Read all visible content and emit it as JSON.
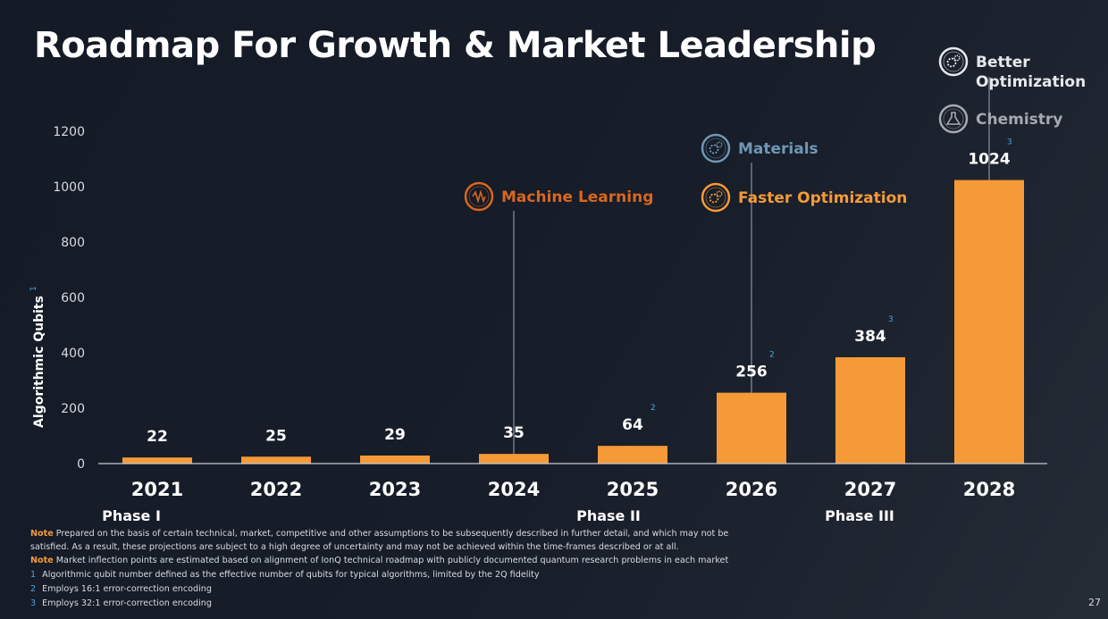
{
  "title": "Roadmap For Growth & Market Leadership",
  "chart_data": {
    "type": "bar",
    "categories": [
      "2021",
      "2022",
      "2023",
      "2024",
      "2025",
      "2026",
      "2027",
      "2028"
    ],
    "values": [
      22,
      25,
      29,
      35,
      64,
      256,
      384,
      1024
    ],
    "value_footnotes": [
      "",
      "",
      "",
      "",
      "2",
      "2",
      "3",
      "3"
    ],
    "ylabel": "Algorithmic Qubits",
    "ylabel_footnote": "1",
    "ylim": [
      0,
      1200
    ],
    "yticks": [
      0,
      200,
      400,
      600,
      800,
      1000,
      1200
    ],
    "grid": false,
    "phases": [
      {
        "label": "Phase I",
        "category": "2021"
      },
      {
        "label": "Phase II",
        "category": "2025"
      },
      {
        "label": "Phase III",
        "category": "2027"
      }
    ],
    "annotations": [
      {
        "category": "2024",
        "items": [
          {
            "text": "Machine Learning",
            "color": "#d9661f",
            "icon": "neural-chip-icon"
          }
        ]
      },
      {
        "category": "2026",
        "items": [
          {
            "text": "Materials",
            "color": "#6f97b5",
            "icon": "gears-icon"
          },
          {
            "text": "Faster Optimization",
            "color": "#f59a37",
            "icon": "gear-clock-icon"
          }
        ]
      },
      {
        "category": "2028",
        "items": [
          {
            "text": "Better Optimization",
            "color": "#e6e8ec",
            "icon": "gear-sparkle-icon"
          },
          {
            "text": "Chemistry",
            "color": "#a5a9b0",
            "icon": "flask-icon"
          }
        ]
      }
    ],
    "bar_color": "#f59a37",
    "footnote_color": "#4aa3e0"
  },
  "notes": {
    "note_label": "Note",
    "note1": "Prepared on the basis of certain technical, market, competitive and other assumptions to be subsequently described in further detail, and which may not be satisfied. As a result, these projections are subject to a high degree of uncertainty and may not be achieved within the time-frames described or at all.",
    "note2": "Market inflection points are estimated based on alignment of IonQ technical roadmap with publicly documented quantum research problems in each market",
    "footnotes": [
      {
        "num": "1",
        "text": "Algorithmic qubit number defined as the effective number of qubits for typical algorithms, limited by the 2Q fidelity"
      },
      {
        "num": "2",
        "text": "Employs 16:1 error-correction encoding"
      },
      {
        "num": "3",
        "text": "Employs 32:1 error-correction encoding"
      }
    ]
  },
  "page_number": "27"
}
